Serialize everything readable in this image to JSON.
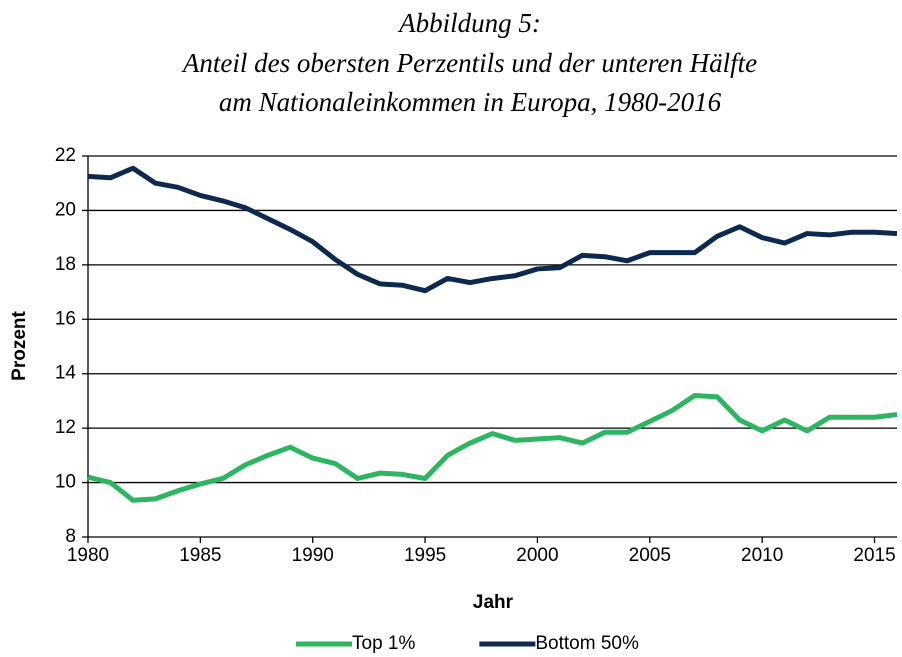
{
  "chart_data": {
    "type": "line",
    "title": [
      "Abbildung 5:",
      "Anteil des obersten Perzentils und der unteren Hälfte",
      "am Nationaleinkommen in Europa, 1980-2016"
    ],
    "x_label": "Jahr",
    "y_label": "Prozent",
    "x": [
      1980,
      1981,
      1982,
      1983,
      1984,
      1985,
      1986,
      1987,
      1988,
      1989,
      1990,
      1991,
      1992,
      1993,
      1994,
      1995,
      1996,
      1997,
      1998,
      1999,
      2000,
      2001,
      2002,
      2003,
      2004,
      2005,
      2006,
      2007,
      2008,
      2009,
      2010,
      2011,
      2012,
      2013,
      2014,
      2015,
      2016
    ],
    "series": [
      {
        "name": "Top 1%",
        "color": "#2db562",
        "values": [
          10.2,
          10.0,
          9.35,
          9.4,
          9.7,
          9.95,
          10.15,
          10.65,
          11.0,
          11.3,
          10.9,
          10.7,
          10.15,
          10.35,
          10.3,
          10.15,
          11.0,
          11.45,
          11.8,
          11.55,
          11.6,
          11.65,
          11.45,
          11.85,
          11.85,
          12.25,
          12.65,
          13.2,
          13.15,
          12.3,
          11.9,
          12.3,
          11.9,
          12.4,
          12.4,
          12.4,
          12.5
        ]
      },
      {
        "name": "Bottom 50%",
        "color": "#0d2a4e",
        "values": [
          21.25,
          21.2,
          21.55,
          21.0,
          20.85,
          20.55,
          20.35,
          20.1,
          19.7,
          19.3,
          18.85,
          18.2,
          17.65,
          17.3,
          17.25,
          17.05,
          17.5,
          17.35,
          17.5,
          17.6,
          17.85,
          17.9,
          18.35,
          18.3,
          18.15,
          18.45,
          18.45,
          18.45,
          19.05,
          19.4,
          19.0,
          18.8,
          19.15,
          19.1,
          19.2,
          19.2,
          19.15
        ]
      }
    ],
    "xlim": [
      1980,
      2016
    ],
    "xticks": [
      1980,
      1985,
      1990,
      1995,
      2000,
      2005,
      2010,
      2015
    ],
    "ylim": [
      8,
      22
    ],
    "yticks": [
      8,
      10,
      12,
      14,
      16,
      18,
      20,
      22
    ],
    "grid": true,
    "legend": "bottom"
  }
}
